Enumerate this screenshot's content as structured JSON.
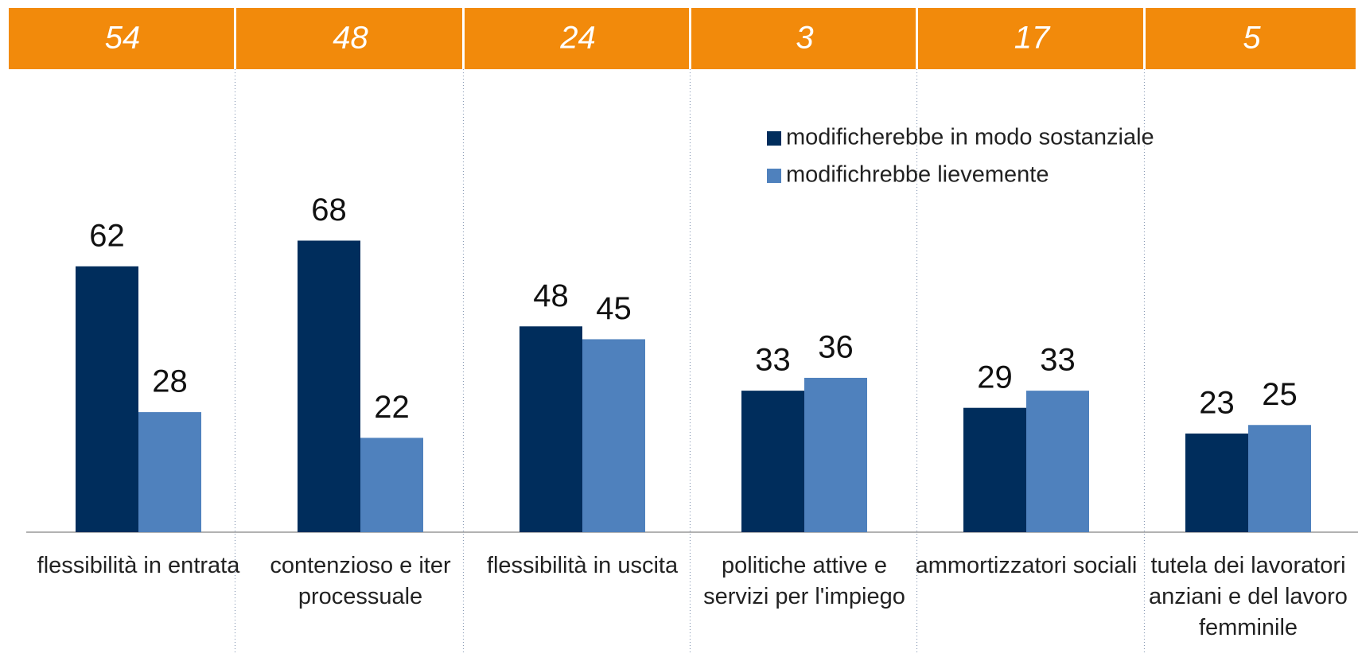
{
  "chart_data": {
    "type": "bar",
    "top_values": [
      54,
      48,
      24,
      3,
      17,
      5
    ],
    "categories": [
      "flessibilità in entrata",
      "contenzioso e iter processuale",
      "flessibilità in uscita",
      "politiche attive e servizi per l'impiego",
      "ammortizzatori sociali",
      "tutela dei lavoratori anziani e del lavoro femminile"
    ],
    "series": [
      {
        "name": "modificherebbe in modo sostanziale",
        "color": "#002d5c",
        "values": [
          62,
          68,
          48,
          33,
          29,
          23
        ]
      },
      {
        "name": "modifichrebbe lievemente",
        "color": "#4f81bd",
        "values": [
          28,
          22,
          45,
          36,
          33,
          25
        ]
      }
    ],
    "header_color": "#f28a0b"
  }
}
